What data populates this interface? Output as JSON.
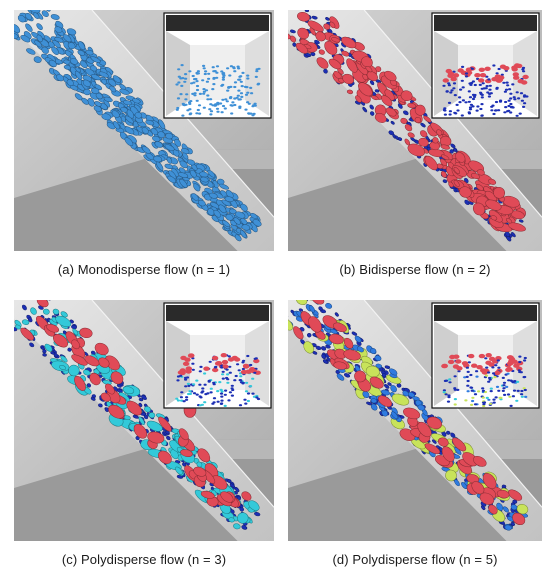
{
  "panels": [
    {
      "id": "a",
      "caption": "(a) Monodisperse flow (n = 1)",
      "species_colors": [
        "#3f90d6"
      ]
    },
    {
      "id": "b",
      "caption": "(b) Bidisperse flow (n = 2)",
      "species_colors": [
        "#1c2fb4",
        "#e04a57"
      ]
    },
    {
      "id": "c",
      "caption": "(c) Polydisperse flow (n = 3)",
      "species_colors": [
        "#1c2fb4",
        "#33c9d9",
        "#e04a57"
      ]
    },
    {
      "id": "d",
      "caption": "(d) Polydisperse flow (n = 5)",
      "species_colors": [
        "#1c2fb4",
        "#2f7be0",
        "#33c9d9",
        "#c8e35a",
        "#e04a57"
      ]
    }
  ]
}
